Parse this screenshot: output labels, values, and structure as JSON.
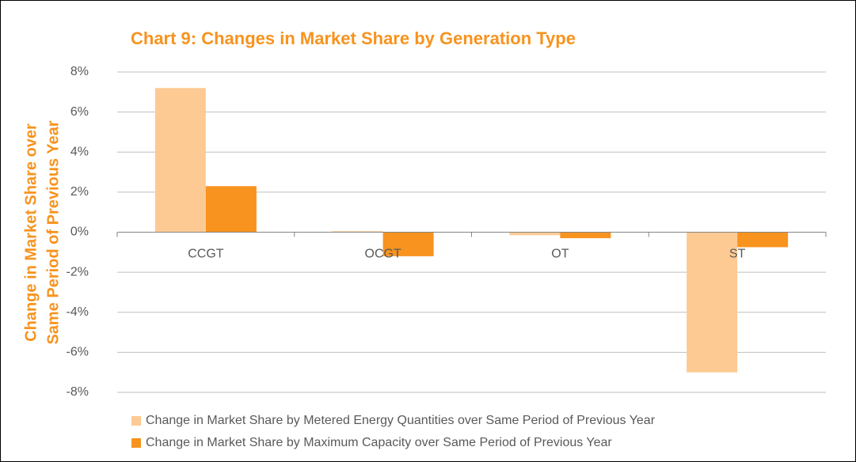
{
  "chart_data": {
    "type": "bar",
    "title": "Chart 9: Changes in Market Share by Generation Type",
    "ylabel": [
      "Change in Market Share over",
      "Same Period of Previous Year"
    ],
    "categories": [
      "CCGT",
      "OCGT",
      "OT",
      "ST"
    ],
    "series": [
      {
        "name": "Change in Market Share by Metered Energy Quantities over Same Period of Previous Year",
        "color": "#fdca94",
        "values": [
          7.2,
          0.05,
          -0.15,
          -7.0
        ]
      },
      {
        "name": "Change in Market Share by Maximum Capacity over Same Period of Previous Year",
        "color": "#f7931e",
        "values": [
          2.3,
          -1.2,
          -0.3,
          -0.75
        ]
      }
    ],
    "ylim": [
      -8,
      8
    ],
    "yticks": [
      {
        "value": -8,
        "label": "-8%"
      },
      {
        "value": -6,
        "label": "-6%"
      },
      {
        "value": -4,
        "label": "-4%"
      },
      {
        "value": -2,
        "label": "-2%"
      },
      {
        "value": 0,
        "label": "0%"
      },
      {
        "value": 2,
        "label": "2%"
      },
      {
        "value": 4,
        "label": "4%"
      },
      {
        "value": 6,
        "label": "6%"
      },
      {
        "value": 8,
        "label": "8%"
      }
    ],
    "grid": true,
    "legend": "bottom"
  }
}
